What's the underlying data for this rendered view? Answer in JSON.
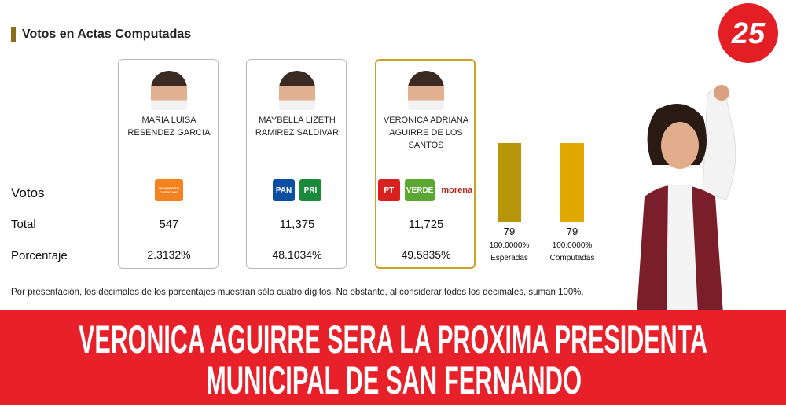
{
  "header": {
    "title": "Votos en Actas Computadas"
  },
  "logo": "25",
  "row_labels": {
    "votes": "Votos",
    "total": "Total",
    "percent": "Porcentaje"
  },
  "candidates": [
    {
      "name": "MARIA LUISA RESENDEZ GARCIA",
      "parties": [
        {
          "text": "MOVIMIENTO CIUDADANO",
          "color": "#f58220"
        }
      ],
      "total": "547",
      "percent": "2.3132%"
    },
    {
      "name": "MAYBELLA LIZETH RAMIREZ SALDIVAR",
      "parties": [
        {
          "text": "PAN",
          "color": "#0b4ea2"
        },
        {
          "text": "PRI",
          "color": "#1a8a3a"
        }
      ],
      "total": "11,375",
      "percent": "48.1034%"
    },
    {
      "name": "VERONICA ADRIANA AGUIRRE DE LOS SANTOS",
      "parties": [
        {
          "text": "PT",
          "color": "#d8201f"
        },
        {
          "text": "VERDE",
          "color": "#5aa832"
        },
        {
          "text": "morena",
          "color": "#b5261e"
        }
      ],
      "total": "11,725",
      "percent": "49.5835%"
    }
  ],
  "actas": [
    {
      "value": 79,
      "percent": "100.0000%",
      "label": "Esperadas",
      "color": "#b8960a"
    },
    {
      "value": 79,
      "percent": "100.0000%",
      "label": "Computadas",
      "color": "#e0a800"
    }
  ],
  "footnote": "Por presentación, los decimales de los porcentajes muestran sólo cuatro dígitos. No obstante, al considerar todos los decimales, suman 100%.",
  "banner": [
    "VERONICA AGUIRRE SERA LA PROXIMA PRESIDENTA",
    "MUNICIPAL DE SAN FERNANDO"
  ]
}
